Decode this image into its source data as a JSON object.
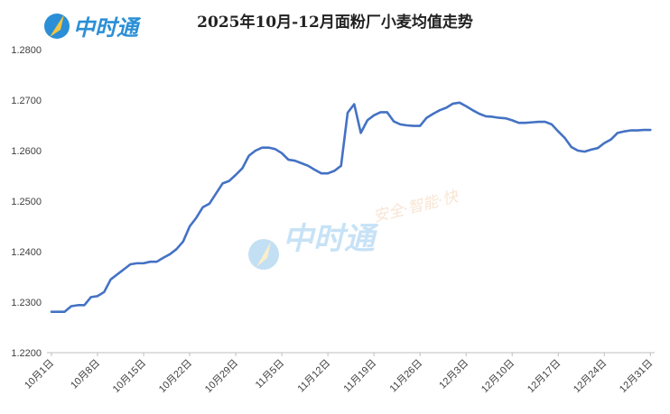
{
  "logo": {
    "text": "中时通"
  },
  "watermark": {
    "text": "中时通",
    "slogan": "安全·智能·快"
  },
  "colors": {
    "line": "#4472C4",
    "axis": "#bfbfbf",
    "text": "#404040",
    "logo": "#2a8fd6"
  },
  "chart_data": {
    "type": "line",
    "title": "2025年10月-12月面粉厂小麦均值走势",
    "xlabel": "",
    "ylabel": "",
    "ylim": [
      1.22,
      1.28
    ],
    "y_ticks": [
      "1.2200",
      "1.2300",
      "1.2400",
      "1.2500",
      "1.2600",
      "1.2700",
      "1.2800"
    ],
    "x_ticks": [
      "10月1日",
      "10月8日",
      "10月15日",
      "10月22日",
      "10月29日",
      "11月5日",
      "11月12日",
      "11月19日",
      "11月26日",
      "12月3日",
      "12月10日",
      "12月17日",
      "12月24日",
      "12月31日"
    ],
    "x_start": "10月1日",
    "x_end": "12月31日",
    "grid": false,
    "legend": "none",
    "series": [
      {
        "points": [
          [
            "10-01",
            1.2281
          ],
          [
            "10-02",
            1.2281
          ],
          [
            "10-03",
            1.2281
          ],
          [
            "10-04",
            1.2292
          ],
          [
            "10-05",
            1.2294
          ],
          [
            "10-06",
            1.2294
          ],
          [
            "10-07",
            1.231
          ],
          [
            "10-08",
            1.2312
          ],
          [
            "10-09",
            1.232
          ],
          [
            "10-10",
            1.2345
          ],
          [
            "10-11",
            1.2355
          ],
          [
            "10-12",
            1.2365
          ],
          [
            "10-13",
            1.2375
          ],
          [
            "10-14",
            1.2377
          ],
          [
            "10-15",
            1.2377
          ],
          [
            "10-16",
            1.238
          ],
          [
            "10-17",
            1.238
          ],
          [
            "10-18",
            1.2388
          ],
          [
            "10-19",
            1.2395
          ],
          [
            "10-20",
            1.2405
          ],
          [
            "10-21",
            1.242
          ],
          [
            "10-22",
            1.245
          ],
          [
            "10-23",
            1.2467
          ],
          [
            "10-24",
            1.2488
          ],
          [
            "10-25",
            1.2495
          ],
          [
            "10-26",
            1.2515
          ],
          [
            "10-27",
            1.2535
          ],
          [
            "10-28",
            1.254
          ],
          [
            "10-29",
            1.2552
          ],
          [
            "10-30",
            1.2565
          ],
          [
            "10-31",
            1.259
          ],
          [
            "11-01",
            1.26
          ],
          [
            "11-02",
            1.2606
          ],
          [
            "11-03",
            1.2606
          ],
          [
            "11-04",
            1.2603
          ],
          [
            "11-05",
            1.2595
          ],
          [
            "11-06",
            1.2582
          ],
          [
            "11-07",
            1.258
          ],
          [
            "11-08",
            1.2575
          ],
          [
            "11-09",
            1.257
          ],
          [
            "11-10",
            1.2562
          ],
          [
            "11-11",
            1.2555
          ],
          [
            "11-12",
            1.2555
          ],
          [
            "11-13",
            1.256
          ],
          [
            "11-14",
            1.257
          ],
          [
            "11-15",
            1.2675
          ],
          [
            "11-16",
            1.2692
          ],
          [
            "11-17",
            1.2635
          ],
          [
            "11-18",
            1.266
          ],
          [
            "11-19",
            1.267
          ],
          [
            "11-20",
            1.2676
          ],
          [
            "11-21",
            1.2676
          ],
          [
            "11-22",
            1.2658
          ],
          [
            "11-23",
            1.2652
          ],
          [
            "11-24",
            1.265
          ],
          [
            "11-25",
            1.2649
          ],
          [
            "11-26",
            1.2649
          ],
          [
            "11-27",
            1.2665
          ],
          [
            "11-28",
            1.2673
          ],
          [
            "11-29",
            1.268
          ],
          [
            "11-30",
            1.2685
          ],
          [
            "12-01",
            1.2693
          ],
          [
            "12-02",
            1.2695
          ],
          [
            "12-03",
            1.2688
          ],
          [
            "12-04",
            1.268
          ],
          [
            "12-05",
            1.2673
          ],
          [
            "12-06",
            1.2668
          ],
          [
            "12-07",
            1.2667
          ],
          [
            "12-08",
            1.2665
          ],
          [
            "12-09",
            1.2664
          ],
          [
            "12-10",
            1.266
          ],
          [
            "12-11",
            1.2655
          ],
          [
            "12-12",
            1.2655
          ],
          [
            "12-13",
            1.2656
          ],
          [
            "12-14",
            1.2657
          ],
          [
            "12-15",
            1.2657
          ],
          [
            "12-16",
            1.2652
          ],
          [
            "12-17",
            1.2638
          ],
          [
            "12-18",
            1.2625
          ],
          [
            "12-19",
            1.2607
          ],
          [
            "12-20",
            1.26
          ],
          [
            "12-21",
            1.2598
          ],
          [
            "12-22",
            1.2602
          ],
          [
            "12-23",
            1.2605
          ],
          [
            "12-24",
            1.2615
          ],
          [
            "12-25",
            1.2622
          ],
          [
            "12-26",
            1.2635
          ],
          [
            "12-27",
            1.2638
          ],
          [
            "12-28",
            1.264
          ],
          [
            "12-29",
            1.264
          ],
          [
            "12-30",
            1.2641
          ],
          [
            "12-31",
            1.2641
          ]
        ]
      }
    ]
  }
}
